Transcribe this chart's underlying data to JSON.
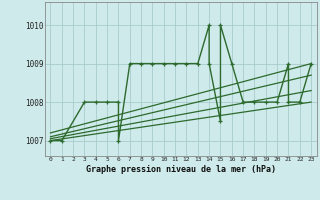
{
  "bg_color": "#ceeaea",
  "grid_color": "#aacccc",
  "line_color": "#2d6a2d",
  "title": "Graphe pression niveau de la mer (hPa)",
  "ylabel_values": [
    1007,
    1008,
    1009,
    1010
  ],
  "xlim": [
    -0.5,
    23.5
  ],
  "ylim": [
    1006.6,
    1010.6
  ],
  "xticks": [
    0,
    1,
    2,
    3,
    4,
    5,
    6,
    7,
    8,
    9,
    10,
    11,
    12,
    13,
    14,
    15,
    16,
    17,
    18,
    19,
    20,
    21,
    22,
    23
  ],
  "series": [
    {
      "x": [
        0,
        1,
        3,
        4,
        5,
        6,
        6,
        7,
        8,
        9,
        10,
        11,
        12,
        13,
        14,
        14,
        15,
        15,
        16,
        17,
        18,
        19,
        20,
        21,
        21,
        22,
        23
      ],
      "y": [
        1007.0,
        1007.0,
        1008.0,
        1008.0,
        1008.0,
        1008.0,
        1007.0,
        1009.0,
        1009.0,
        1009.0,
        1009.0,
        1009.0,
        1009.0,
        1009.0,
        1010.0,
        1009.0,
        1007.5,
        1010.0,
        1009.0,
        1008.0,
        1008.0,
        1008.0,
        1008.0,
        1009.0,
        1008.0,
        1008.0,
        1009.0
      ],
      "marker": "+",
      "lw": 1.0
    },
    {
      "x": [
        0,
        23
      ],
      "y": [
        1007.0,
        1008.0
      ],
      "marker": null,
      "lw": 0.9
    },
    {
      "x": [
        0,
        23
      ],
      "y": [
        1007.05,
        1008.3
      ],
      "marker": null,
      "lw": 0.9
    },
    {
      "x": [
        0,
        23
      ],
      "y": [
        1007.1,
        1008.7
      ],
      "marker": null,
      "lw": 0.9
    },
    {
      "x": [
        0,
        23
      ],
      "y": [
        1007.2,
        1009.0
      ],
      "marker": null,
      "lw": 0.9
    }
  ]
}
